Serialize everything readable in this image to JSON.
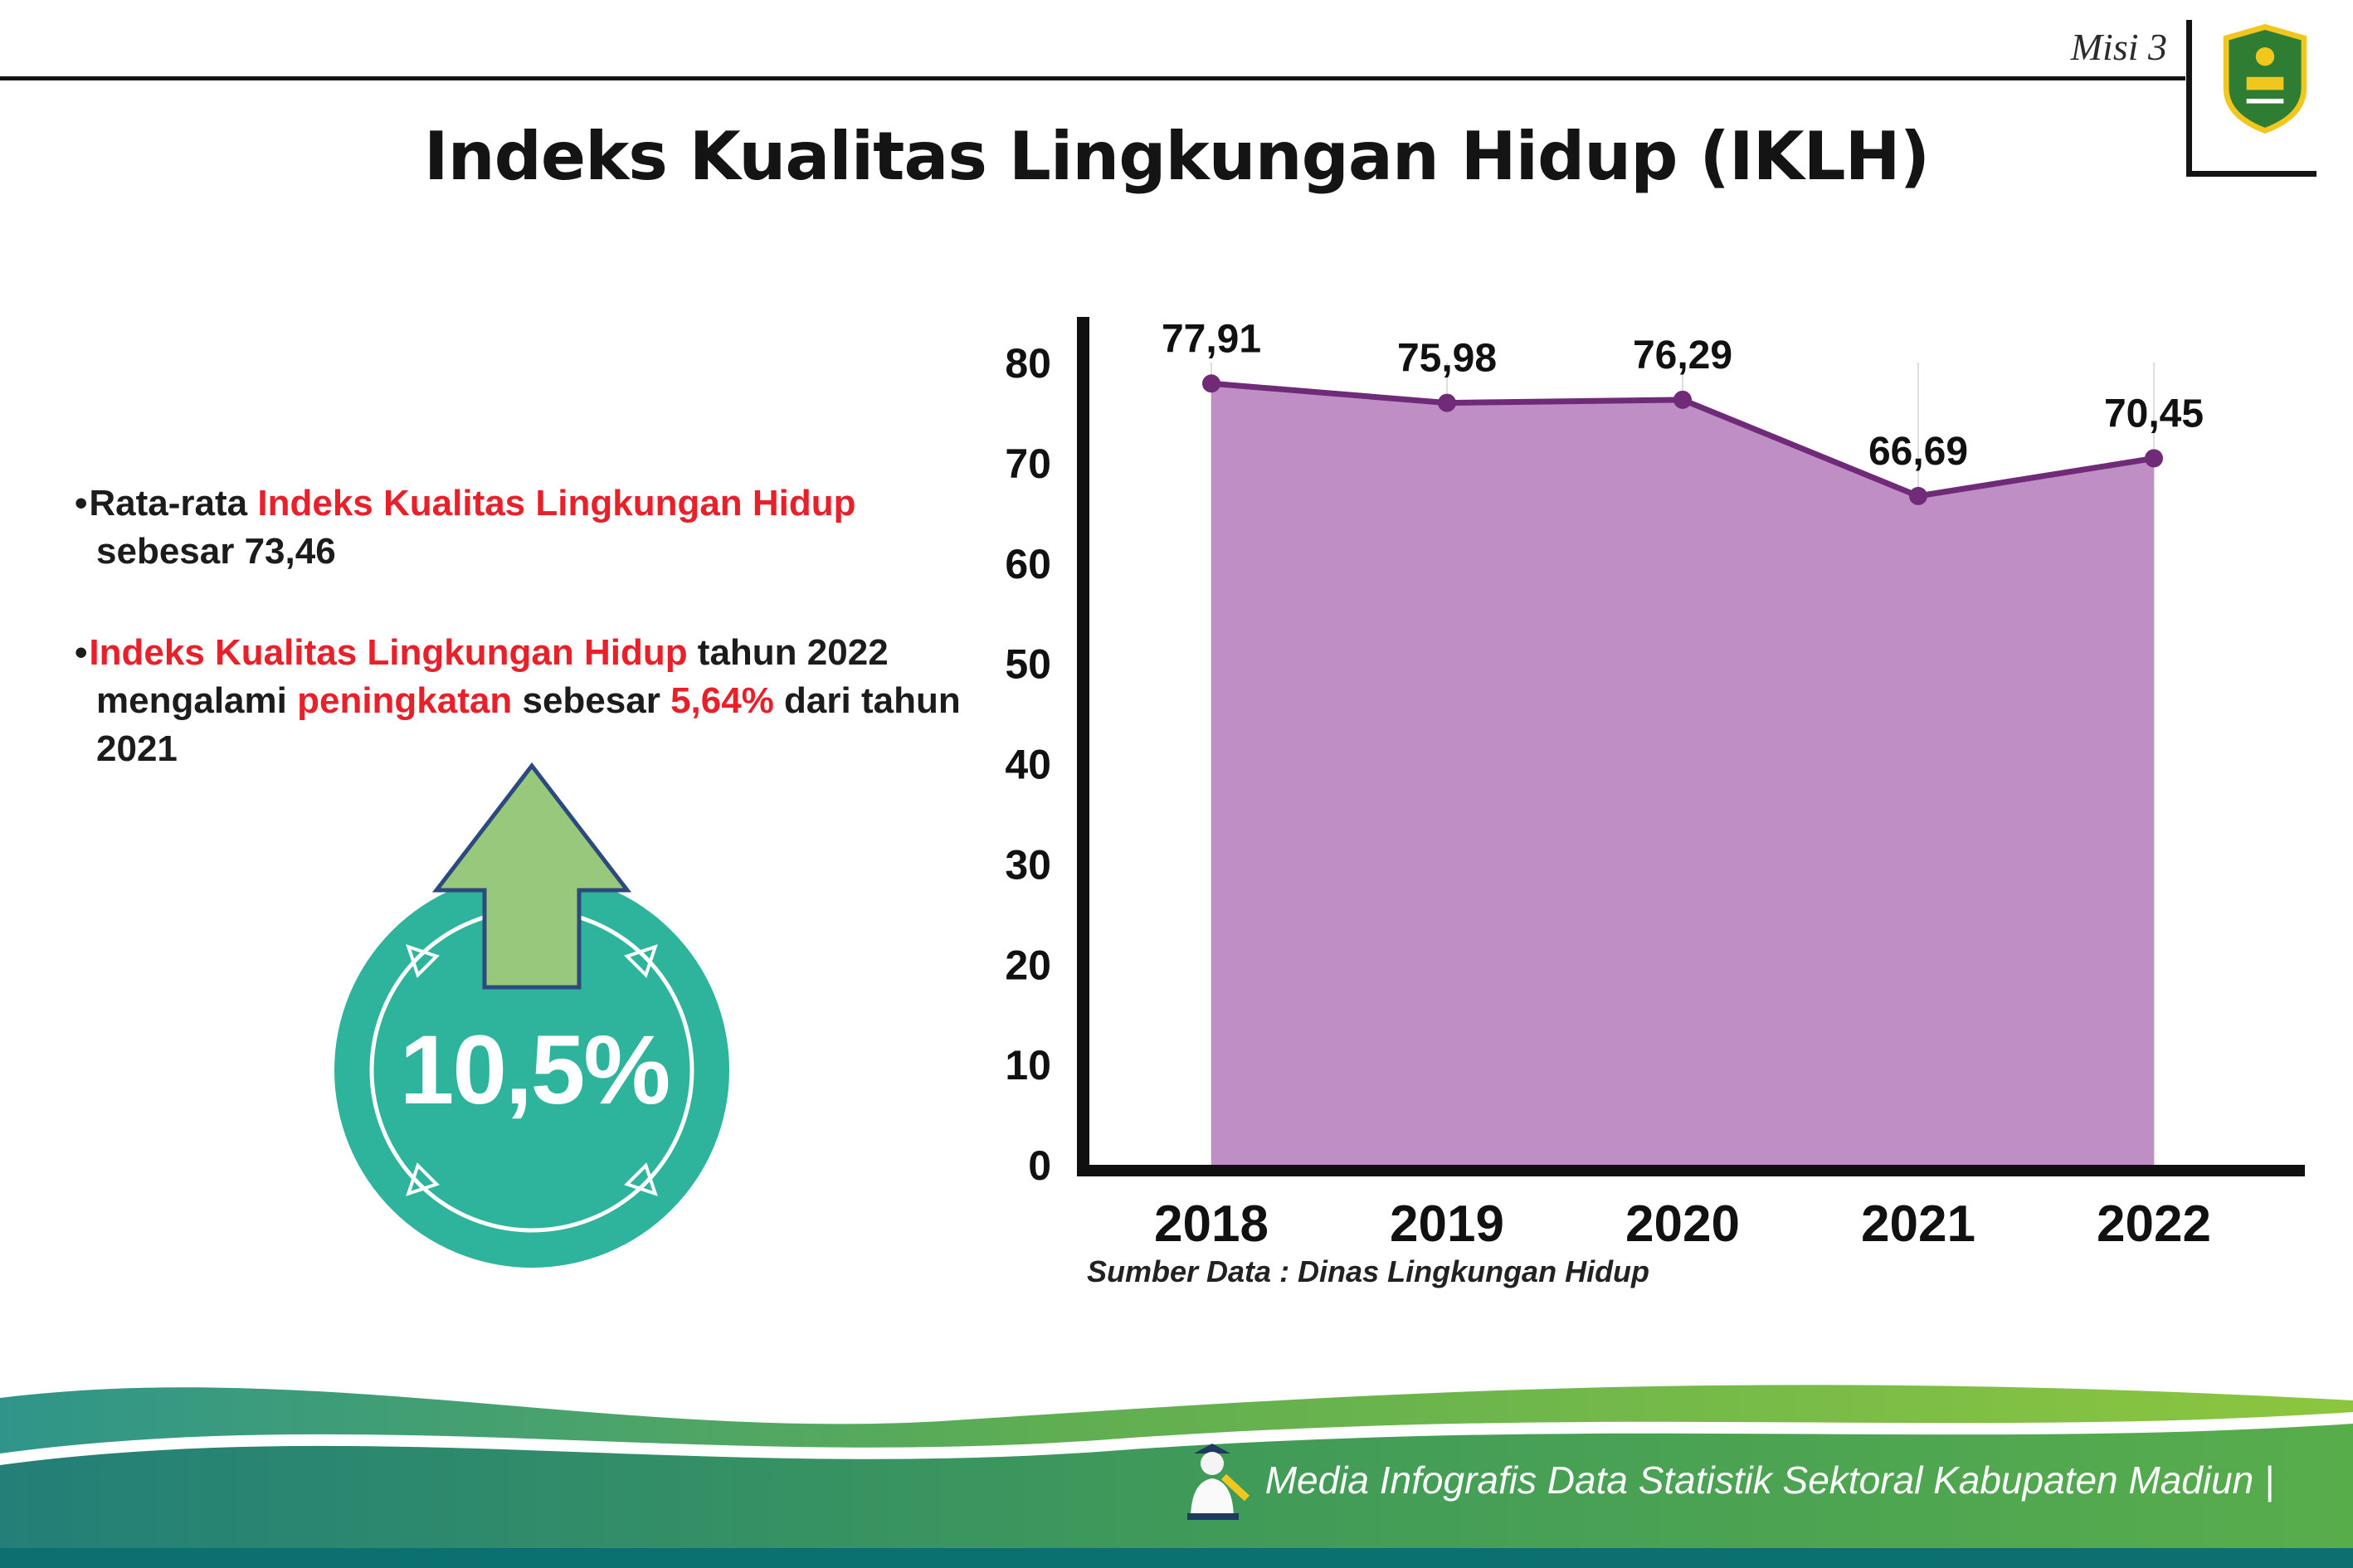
{
  "meta": {
    "misi_label": "Misi 3",
    "logo_name": "kabupaten-madiun-crest"
  },
  "title": "Indeks Kualitas Lingkungan Hidup (IKLH)",
  "bullets": {
    "b1_pre": "Rata-rata ",
    "b1_red": "Indeks Kualitas Lingkungan Hidup",
    "b1_post": " sebesar 73,46",
    "b2_red1": "Indeks Kualitas Lingkungan Hidup",
    "b2_mid1": " tahun 2022 mengalami ",
    "b2_red2": "peningkatan",
    "b2_mid2": " sebesar ",
    "b2_red3": "5,64%",
    "b2_post": " dari tahun 2021"
  },
  "highlight": {
    "value": "10,5%",
    "circle_color": "#2eb49c",
    "arrow_color": "#97c87b"
  },
  "chart_data": {
    "type": "area",
    "title": "",
    "categories": [
      "2018",
      "2019",
      "2020",
      "2021",
      "2022"
    ],
    "values": [
      77.91,
      75.98,
      76.29,
      66.69,
      70.45
    ],
    "point_labels": [
      "77,91",
      "75,98",
      "76,29",
      "66,69",
      "70,45"
    ],
    "ylim": [
      0,
      80
    ],
    "ytick_step": 10,
    "xlabel": "",
    "ylabel": "",
    "grid": "vertical-light",
    "legend": "none",
    "fill_color": "#bf8ec5",
    "line_color": "#6f2b77",
    "source": "Sumber Data : Dinas Lingkungan Hidup"
  },
  "footer": {
    "tagline": "Media Infografis Data Statistik Sektoral Kabupaten Madiun |"
  }
}
